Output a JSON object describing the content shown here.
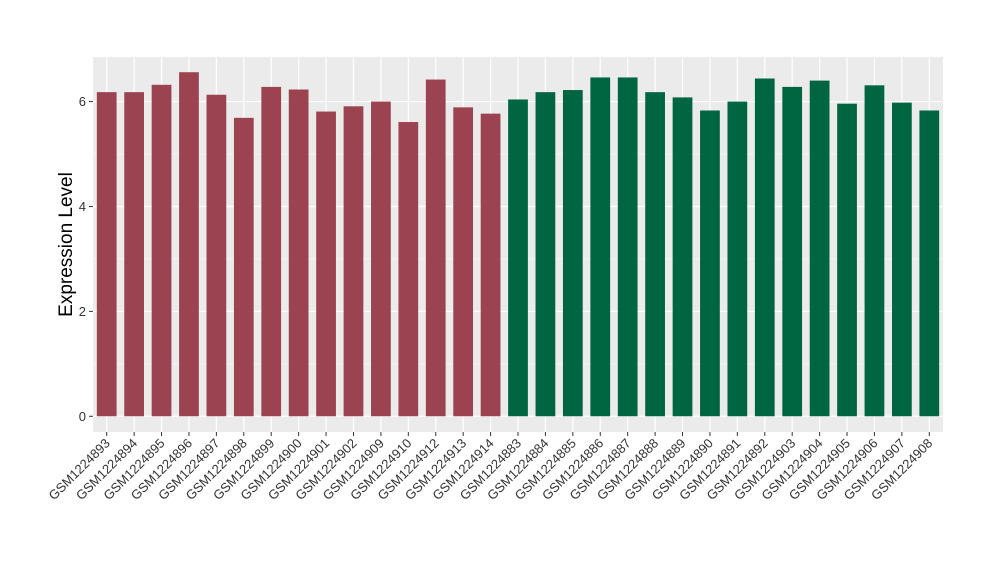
{
  "chart_data": {
    "type": "bar",
    "ylabel": "Expression Level",
    "xlabel": "",
    "ylim": [
      -0.3,
      6.85
    ],
    "yticks": [
      0,
      2,
      4,
      6
    ],
    "grid": true,
    "categories": [
      "GSM1224893",
      "GSM1224894",
      "GSM1224895",
      "GSM1224896",
      "GSM1224897",
      "GSM1224898",
      "GSM1224899",
      "GSM1224900",
      "GSM1224901",
      "GSM1224902",
      "GSM1224909",
      "GSM1224910",
      "GSM1224912",
      "GSM1224913",
      "GSM1224914",
      "GSM1224883",
      "GSM1224884",
      "GSM1224885",
      "GSM1224886",
      "GSM1224887",
      "GSM1224888",
      "GSM1224889",
      "GSM1224890",
      "GSM1224891",
      "GSM1224892",
      "GSM1224903",
      "GSM1224904",
      "GSM1224905",
      "GSM1224906",
      "GSM1224907",
      "GSM1224908"
    ],
    "values": [
      6.18,
      6.18,
      6.32,
      6.56,
      6.13,
      5.69,
      6.28,
      6.23,
      5.81,
      5.91,
      6.0,
      5.61,
      6.42,
      5.89,
      5.77,
      6.04,
      6.18,
      6.22,
      6.46,
      6.46,
      6.18,
      6.08,
      5.83,
      6.0,
      6.44,
      6.28,
      6.4,
      5.96,
      6.31,
      5.98,
      5.83
    ],
    "groups": [
      "A",
      "A",
      "A",
      "A",
      "A",
      "A",
      "A",
      "A",
      "A",
      "A",
      "A",
      "A",
      "A",
      "A",
      "A",
      "B",
      "B",
      "B",
      "B",
      "B",
      "B",
      "B",
      "B",
      "B",
      "B",
      "B",
      "B",
      "B",
      "B",
      "B",
      "B"
    ],
    "colors": {
      "A": "#9b4350",
      "B": "#006641",
      "panel": "#ebebeb",
      "grid_major": "#ffffff",
      "grid_minor": "#f5f5f5"
    }
  }
}
